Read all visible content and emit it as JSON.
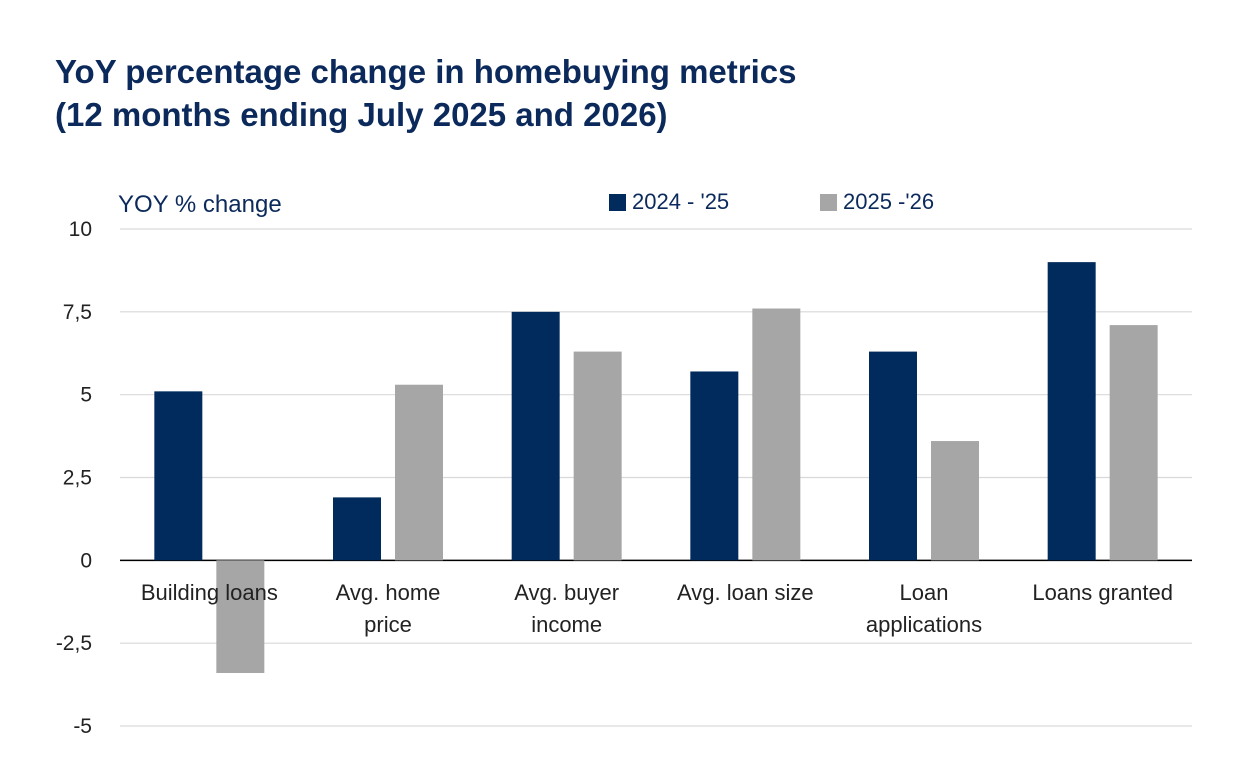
{
  "chart_data": {
    "type": "bar",
    "title": "YoY percentage change in homebuying metrics",
    "subtitle": "(12 months ending July 2025 and 2026)",
    "ylabel": "YOY % change",
    "xlabel": "",
    "ylim": [
      -5,
      10
    ],
    "yticks": [
      "10",
      "7,5",
      "5",
      "2,5",
      "0",
      "-2,5",
      "-5"
    ],
    "ytick_values": [
      10,
      7.5,
      5,
      2.5,
      0,
      -2.5,
      -5
    ],
    "grid": true,
    "legend_position": "top",
    "categories": [
      [
        "Building loans"
      ],
      [
        "Avg. home",
        "price"
      ],
      [
        "Avg. buyer",
        "income"
      ],
      [
        "Avg. loan size"
      ],
      [
        "Loan",
        "applications"
      ],
      [
        "Loans granted"
      ]
    ],
    "series": [
      {
        "name": "2024 - '25",
        "color": "#002b5c",
        "values": [
          5.1,
          1.9,
          7.5,
          5.7,
          6.3,
          9.0
        ]
      },
      {
        "name": "2025 -'26",
        "color": "#a6a6a6",
        "values": [
          -3.4,
          5.3,
          6.3,
          7.6,
          3.6,
          7.1
        ]
      }
    ]
  }
}
